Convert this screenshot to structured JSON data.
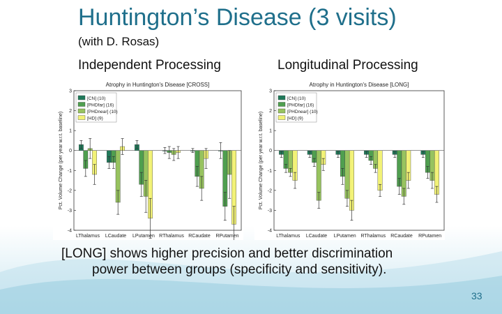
{
  "slide": {
    "title": "Huntington’s Disease (3 visits)",
    "subtitle": "(with D. Rosas)",
    "left_heading": "Independent Processing",
    "right_heading": "Longitudinal Processing",
    "caption_line1": "[LONG] shows higher precision and better discrimination",
    "caption_line2": "power between groups (specificity and sensitivity).",
    "page_number": "33"
  },
  "chart_data": [
    {
      "type": "bar",
      "title": "Atrophy in Huntington's Disease [CROSS]",
      "ylabel": "Pct. Volume Change (per year w.r.t. baseline)",
      "xlabel": "",
      "ylim": [
        -4,
        3
      ],
      "yticks": [
        "3",
        "2",
        "1",
        "0",
        "-1",
        "-2",
        "-3",
        "-4"
      ],
      "categories": [
        "LThalamus",
        "LCaudate",
        "LPutamen",
        "RThalamus",
        "RCaudate",
        "RPutamen"
      ],
      "legend": [
        "[CN] (10)",
        "[PHDfar] (16)",
        "[PHDnear] (10)",
        "[HD] (9)"
      ],
      "colors": [
        "#1f7a5a",
        "#4f9f4f",
        "#97c35f",
        "#f2f277"
      ],
      "series": [
        {
          "name": "[CN] (10)",
          "values": [
            0.3,
            -0.6,
            0.3,
            0.0,
            0.0,
            0.0
          ],
          "err": [
            0.2,
            0.3,
            0.2,
            0.15,
            0.1,
            0.4
          ]
        },
        {
          "name": "[PHDfar] (16)",
          "values": [
            -0.9,
            -0.6,
            -1.7,
            -0.1,
            -1.3,
            -2.8
          ],
          "err": [
            0.4,
            0.3,
            0.6,
            0.3,
            0.5,
            0.7
          ]
        },
        {
          "name": "[PHDnear] (10)",
          "values": [
            0.1,
            -2.6,
            -2.3,
            -0.2,
            -1.9,
            -1.2
          ],
          "err": [
            0.5,
            0.6,
            0.8,
            0.3,
            0.6,
            1.2
          ]
        },
        {
          "name": "[HD] (9)",
          "values": [
            -1.2,
            0.2,
            -3.4,
            -0.1,
            -0.4,
            -3.7
          ],
          "err": [
            0.5,
            0.4,
            1.0,
            0.3,
            0.5,
            0.9
          ]
        }
      ]
    },
    {
      "type": "bar",
      "title": "Atrophy in Huntington's Disease [LONG]",
      "ylabel": "Pct. Volume Change (per year w.r.t. baseline)",
      "xlabel": "",
      "ylim": [
        -4,
        3
      ],
      "yticks": [
        "3",
        "2",
        "1",
        "0",
        "-1",
        "-2",
        "-3",
        "-4"
      ],
      "categories": [
        "LThalamus",
        "LCaudate",
        "LPutamen",
        "RThalamus",
        "RCaudate",
        "RPutamen"
      ],
      "legend": [
        "[CN] (10)",
        "[PHDfar] (16)",
        "[PHDnear] (10)",
        "[HD] (9)"
      ],
      "colors": [
        "#1f7a5a",
        "#4f9f4f",
        "#97c35f",
        "#f2f277"
      ],
      "series": [
        {
          "name": "[CN] (10)",
          "values": [
            -0.2,
            -0.2,
            -0.2,
            -0.2,
            -0.2,
            -0.2
          ],
          "err": [
            0.15,
            0.15,
            0.15,
            0.15,
            0.15,
            0.15
          ]
        },
        {
          "name": "[PHDfar] (16)",
          "values": [
            -0.9,
            -0.6,
            -1.3,
            -0.5,
            -1.8,
            -1.1
          ],
          "err": [
            0.2,
            0.2,
            0.4,
            0.2,
            0.4,
            0.3
          ]
        },
        {
          "name": "[PHDnear] (10)",
          "values": [
            -1.1,
            -2.5,
            -2.4,
            -0.9,
            -2.3,
            -1.5
          ],
          "err": [
            0.2,
            0.4,
            0.4,
            0.2,
            0.4,
            0.4
          ]
        },
        {
          "name": "[HD] (9)",
          "values": [
            -1.5,
            -0.7,
            -3.0,
            -2.0,
            -1.5,
            -2.2
          ],
          "err": [
            0.4,
            0.3,
            0.5,
            0.3,
            0.4,
            0.4
          ]
        }
      ]
    }
  ]
}
